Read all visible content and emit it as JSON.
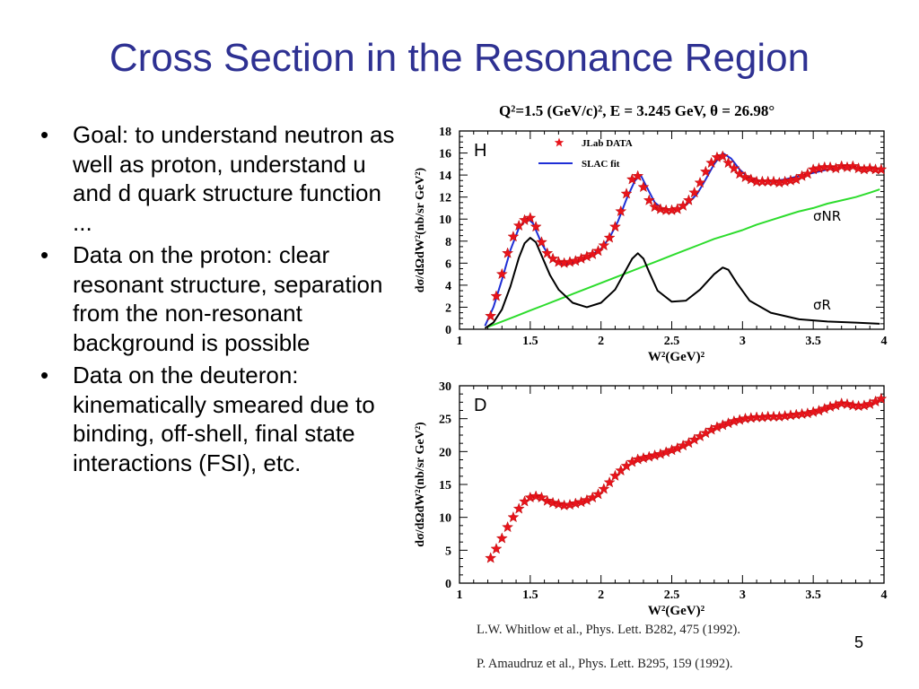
{
  "slide": {
    "title": "Cross Section in the Resonance Region",
    "bullets": [
      "Goal: to understand neutron as well as proton, understand u and d quark structure function ...",
      "Data on the proton: clear resonant structure, separation from the non-resonant background is possible",
      "Data on the deuteron: kinematically smeared due to binding, off-shell, final state interactions (FSI), etc."
    ],
    "bullet_symbol": "•",
    "page_number": "5",
    "references": [
      "L.W. Whitlow et al., Phys. Lett. B282, 475 (1992).",
      "P. Amaudruz et al., Phys. Lett. B295, 159 (1992)."
    ],
    "colors": {
      "title": "#2e3192",
      "data": "#e8141b",
      "fit": "#1f2fd6",
      "nonres": "#2ddc2d",
      "res": "#000000"
    }
  },
  "chart_data": [
    {
      "type": "scatter",
      "title": "Q²=1.5 (GeV/c)², E = 3.245 GeV, θ = 26.98°",
      "panel_label": "H",
      "xlabel": "W²(GeV)²",
      "ylabel": "dσ/dΩdW²(nb/sr GeV²)",
      "xlim": [
        1,
        4
      ],
      "ylim": [
        0,
        18
      ],
      "xticks": [
        "1",
        "1.5",
        "2",
        "2.5",
        "3",
        "3.5",
        "4"
      ],
      "yticks": [
        "0",
        "2",
        "4",
        "6",
        "8",
        "10",
        "12",
        "14",
        "16",
        "18"
      ],
      "legend": [
        "JLab DATA",
        "SLAC fit"
      ],
      "legend_position": "top-left",
      "annotations": [
        "σNR",
        "σR"
      ],
      "series": [
        {
          "name": "JLab DATA",
          "x": [
            1.22,
            1.26,
            1.3,
            1.34,
            1.38,
            1.42,
            1.46,
            1.5,
            1.54,
            1.58,
            1.62,
            1.66,
            1.7,
            1.74,
            1.78,
            1.82,
            1.86,
            1.9,
            1.94,
            1.98,
            2.02,
            2.06,
            2.1,
            2.14,
            2.18,
            2.22,
            2.26,
            2.3,
            2.34,
            2.38,
            2.42,
            2.46,
            2.5,
            2.54,
            2.58,
            2.62,
            2.66,
            2.7,
            2.74,
            2.78,
            2.82,
            2.86,
            2.9,
            2.94,
            2.98,
            3.02,
            3.06,
            3.1,
            3.14,
            3.18,
            3.22,
            3.26,
            3.3,
            3.34,
            3.38,
            3.42,
            3.46,
            3.5,
            3.54,
            3.58,
            3.62,
            3.66,
            3.7,
            3.74,
            3.78,
            3.82,
            3.86,
            3.9,
            3.94,
            3.98
          ],
          "y": [
            1.2,
            3.0,
            5.0,
            6.9,
            8.4,
            9.4,
            9.9,
            10.1,
            9.3,
            7.9,
            6.9,
            6.4,
            6.1,
            6.0,
            6.1,
            6.2,
            6.4,
            6.6,
            6.8,
            7.1,
            7.6,
            8.3,
            9.3,
            10.7,
            12.3,
            13.6,
            13.9,
            12.9,
            11.7,
            11.1,
            10.9,
            10.8,
            10.8,
            10.9,
            11.2,
            11.7,
            12.4,
            13.3,
            14.3,
            15.1,
            15.6,
            15.7,
            15.1,
            14.6,
            14.1,
            13.8,
            13.6,
            13.4,
            13.4,
            13.4,
            13.4,
            13.3,
            13.4,
            13.5,
            13.6,
            13.9,
            14.1,
            14.5,
            14.6,
            14.7,
            14.7,
            14.6,
            14.8,
            14.7,
            14.8,
            14.6,
            14.5,
            14.6,
            14.5,
            14.5
          ]
        },
        {
          "name": "SLAC fit",
          "x": [
            1.18,
            1.24,
            1.3,
            1.36,
            1.42,
            1.48,
            1.52,
            1.58,
            1.64,
            1.7,
            1.76,
            1.82,
            1.88,
            1.94,
            2.0,
            2.06,
            2.12,
            2.18,
            2.24,
            2.28,
            2.32,
            2.38,
            2.44,
            2.5,
            2.56,
            2.62,
            2.68,
            2.74,
            2.8,
            2.86,
            2.92,
            2.98,
            3.04,
            3.1,
            3.2,
            3.3,
            3.4,
            3.5,
            3.6,
            3.7,
            3.8,
            3.9,
            4.0
          ],
          "y": [
            0.3,
            2.0,
            4.5,
            7.2,
            9.2,
            10.1,
            9.6,
            7.8,
            6.5,
            6.0,
            5.9,
            6.1,
            6.4,
            6.8,
            7.3,
            8.3,
            9.8,
            11.8,
            13.5,
            14.0,
            13.0,
            11.5,
            10.9,
            10.8,
            11.0,
            11.5,
            12.3,
            13.6,
            15.0,
            16.0,
            15.5,
            14.5,
            13.8,
            13.5,
            13.4,
            13.6,
            13.9,
            14.2,
            14.5,
            14.7,
            14.7,
            14.6,
            14.5
          ]
        },
        {
          "name": "σNR",
          "x": [
            1.2,
            1.3,
            1.4,
            1.5,
            1.6,
            1.7,
            1.8,
            1.9,
            2.0,
            2.1,
            2.2,
            2.3,
            2.4,
            2.5,
            2.6,
            2.7,
            2.8,
            2.9,
            3.0,
            3.1,
            3.2,
            3.3,
            3.4,
            3.5,
            3.6,
            3.7,
            3.8,
            3.9,
            3.97
          ],
          "y": [
            0.2,
            0.7,
            1.2,
            1.7,
            2.2,
            2.7,
            3.2,
            3.7,
            4.2,
            4.7,
            5.2,
            5.7,
            6.2,
            6.7,
            7.2,
            7.7,
            8.2,
            8.6,
            9.0,
            9.5,
            9.9,
            10.3,
            10.7,
            11.0,
            11.4,
            11.7,
            12.0,
            12.4,
            12.7
          ]
        },
        {
          "name": "σR",
          "x": [
            1.18,
            1.24,
            1.3,
            1.36,
            1.42,
            1.46,
            1.5,
            1.54,
            1.58,
            1.64,
            1.7,
            1.8,
            1.9,
            2.0,
            2.1,
            2.16,
            2.22,
            2.26,
            2.3,
            2.34,
            2.4,
            2.5,
            2.6,
            2.7,
            2.8,
            2.86,
            2.9,
            2.96,
            3.05,
            3.2,
            3.4,
            3.6,
            3.8,
            3.97
          ],
          "y": [
            0.1,
            0.6,
            1.8,
            3.9,
            6.5,
            7.8,
            8.3,
            7.9,
            6.7,
            4.9,
            3.6,
            2.4,
            2.0,
            2.4,
            3.6,
            5.0,
            6.4,
            6.9,
            6.4,
            5.2,
            3.5,
            2.5,
            2.6,
            3.6,
            5.0,
            5.6,
            5.4,
            4.2,
            2.6,
            1.5,
            0.9,
            0.7,
            0.6,
            0.5
          ]
        }
      ]
    },
    {
      "type": "scatter",
      "panel_label": "D",
      "xlabel": "W²(GeV)²",
      "ylabel": "dσ/dΩdW²(nb/sr GeV²)",
      "xlim": [
        1,
        4
      ],
      "ylim": [
        0,
        30
      ],
      "xticks": [
        "1",
        "1.5",
        "2",
        "2.5",
        "3",
        "3.5",
        "4"
      ],
      "yticks": [
        "0",
        "5",
        "10",
        "15",
        "20",
        "25",
        "30"
      ],
      "series": [
        {
          "x": [
            1.22,
            1.26,
            1.3,
            1.34,
            1.38,
            1.42,
            1.46,
            1.5,
            1.54,
            1.58,
            1.62,
            1.66,
            1.7,
            1.74,
            1.78,
            1.82,
            1.86,
            1.9,
            1.94,
            1.98,
            2.02,
            2.06,
            2.1,
            2.14,
            2.18,
            2.22,
            2.26,
            2.3,
            2.34,
            2.38,
            2.42,
            2.46,
            2.5,
            2.54,
            2.58,
            2.62,
            2.66,
            2.7,
            2.74,
            2.78,
            2.82,
            2.86,
            2.9,
            2.94,
            2.98,
            3.02,
            3.06,
            3.1,
            3.14,
            3.18,
            3.22,
            3.26,
            3.3,
            3.34,
            3.38,
            3.42,
            3.46,
            3.5,
            3.54,
            3.58,
            3.62,
            3.66,
            3.7,
            3.74,
            3.78,
            3.82,
            3.86,
            3.9,
            3.94,
            3.98
          ],
          "y": [
            3.8,
            5.2,
            6.8,
            8.5,
            10.0,
            11.3,
            12.4,
            13.0,
            13.2,
            13.0,
            12.5,
            12.2,
            12.0,
            11.8,
            11.9,
            12.1,
            12.3,
            12.6,
            13.0,
            13.5,
            14.3,
            15.3,
            16.3,
            17.1,
            17.8,
            18.4,
            18.8,
            19.0,
            19.2,
            19.4,
            19.6,
            19.9,
            20.2,
            20.5,
            20.9,
            21.3,
            21.8,
            22.3,
            22.8,
            23.3,
            23.7,
            24.0,
            24.3,
            24.6,
            24.8,
            25.0,
            25.1,
            25.2,
            25.2,
            25.3,
            25.3,
            25.3,
            25.4,
            25.5,
            25.6,
            25.7,
            25.8,
            26.0,
            26.2,
            26.5,
            26.8,
            27.0,
            27.3,
            27.2,
            27.0,
            26.9,
            27.0,
            27.2,
            27.6,
            28.0
          ]
        }
      ]
    }
  ]
}
